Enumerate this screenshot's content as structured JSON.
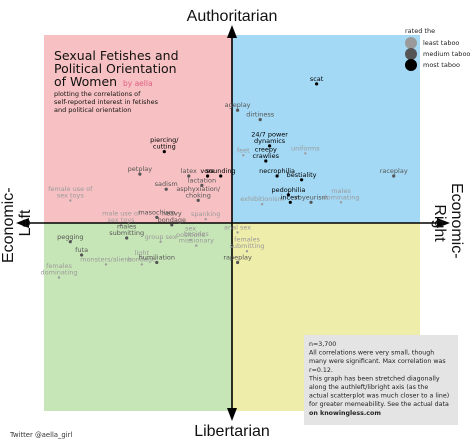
{
  "chart_data": {
    "type": "scatter",
    "title": "Sexual Fetishes and Political Orientation of Women",
    "byline": "by aella",
    "subtitle_lines": [
      "plotting the correlations of",
      "self-reported interest in fetishes",
      "and political orientation"
    ],
    "axis_labels": {
      "top": "Authoritarian",
      "bottom": "Libertarian",
      "left_lines": [
        "Economic-",
        "Left"
      ],
      "right_lines": [
        "Economic-",
        "Right"
      ]
    },
    "x_range": [
      -1,
      1
    ],
    "y_range": [
      -1,
      1
    ],
    "quadrant_colors": {
      "authoritarian_left": "#f7c1c3",
      "authoritarian_right": "#a3d9f5",
      "libertarian_left": "#c7e6b7",
      "libertarian_right": "#eeedaa"
    },
    "legend": {
      "title": "rated the",
      "entries": [
        {
          "label": "least taboo",
          "taboo": 1,
          "color": "#9a9a9a"
        },
        {
          "label": "medium taboo",
          "taboo": 2,
          "color": "#555555"
        },
        {
          "label": "most taboo",
          "taboo": 3,
          "color": "#000000"
        }
      ]
    },
    "points": [
      {
        "label": "scat",
        "x": 0.45,
        "y": 0.74,
        "taboo": 3
      },
      {
        "label": "ageplay",
        "x": 0.03,
        "y": 0.6,
        "taboo": 2
      },
      {
        "label": "dirtiness",
        "x": 0.15,
        "y": 0.55,
        "taboo": 2
      },
      {
        "label": "24/7 power dynamics",
        "x": 0.2,
        "y": 0.41,
        "taboo": 3
      },
      {
        "label": "uniforms",
        "x": 0.39,
        "y": 0.37,
        "taboo": 1
      },
      {
        "label": "feet",
        "x": 0.06,
        "y": 0.36,
        "taboo": 1
      },
      {
        "label": "creepy crawlies",
        "x": 0.18,
        "y": 0.33,
        "taboo": 3
      },
      {
        "label": "necrophilia",
        "x": 0.24,
        "y": 0.25,
        "taboo": 3
      },
      {
        "label": "bestiality",
        "x": 0.37,
        "y": 0.23,
        "taboo": 3
      },
      {
        "label": "raceplay",
        "x": 0.86,
        "y": 0.25,
        "taboo": 2
      },
      {
        "label": "pedophilia",
        "x": 0.3,
        "y": 0.15,
        "taboo": 3
      },
      {
        "label": "exhibitionism",
        "x": 0.16,
        "y": 0.1,
        "taboo": 1
      },
      {
        "label": "incest",
        "x": 0.31,
        "y": 0.11,
        "taboo": 3
      },
      {
        "label": "voyeurism",
        "x": 0.42,
        "y": 0.11,
        "taboo": 2
      },
      {
        "label": "males dominating",
        "x": 0.58,
        "y": 0.11,
        "taboo": 1
      },
      {
        "label": "piercing/ cutting",
        "x": -0.36,
        "y": 0.38,
        "taboo": 3
      },
      {
        "label": "petplay",
        "x": -0.49,
        "y": 0.26,
        "taboo": 2
      },
      {
        "label": "latex",
        "x": -0.23,
        "y": 0.25,
        "taboo": 2
      },
      {
        "label": "vore",
        "x": -0.13,
        "y": 0.25,
        "taboo": 3
      },
      {
        "label": "sounding",
        "x": -0.06,
        "y": 0.25,
        "taboo": 3
      },
      {
        "label": "lactation",
        "x": -0.16,
        "y": 0.2,
        "taboo": 2
      },
      {
        "label": "sadism",
        "x": -0.35,
        "y": 0.18,
        "taboo": 2
      },
      {
        "label": "asphyxiation/ choking",
        "x": -0.18,
        "y": 0.12,
        "taboo": 2
      },
      {
        "label": "female use of sex toys",
        "x": -0.86,
        "y": 0.12,
        "taboo": 1
      },
      {
        "label": "male use of sex toys",
        "x": -0.59,
        "y": -0.01,
        "taboo": 1
      },
      {
        "label": "masochism",
        "x": -0.4,
        "y": 0.03,
        "taboo": 2
      },
      {
        "label": "heavy bondage",
        "x": -0.32,
        "y": -0.01,
        "taboo": 2
      },
      {
        "label": "spanking",
        "x": -0.14,
        "y": 0.02,
        "taboo": 1
      },
      {
        "label": "males submitting",
        "x": -0.56,
        "y": -0.08,
        "taboo": 2
      },
      {
        "label": "group sex",
        "x": -0.38,
        "y": -0.1,
        "taboo": 1
      },
      {
        "label": "sex positions",
        "x": -0.22,
        "y": -0.09,
        "taboo": 1
      },
      {
        "label": "besides missionary",
        "x": -0.19,
        "y": -0.12,
        "taboo": 1
      },
      {
        "label": "pegging",
        "x": -0.86,
        "y": -0.1,
        "taboo": 2
      },
      {
        "label": "futa",
        "x": -0.8,
        "y": -0.17,
        "taboo": 2
      },
      {
        "label": "monsters/aliens",
        "x": -0.67,
        "y": -0.22,
        "taboo": 1
      },
      {
        "label": "light bondage",
        "x": -0.48,
        "y": -0.22,
        "taboo": 1
      },
      {
        "label": "humiliation",
        "x": -0.4,
        "y": -0.21,
        "taboo": 2
      },
      {
        "label": "females dominating",
        "x": -0.92,
        "y": -0.29,
        "taboo": 1
      },
      {
        "label": "anal sex",
        "x": 0.03,
        "y": -0.05,
        "taboo": 1
      },
      {
        "label": "females submitting",
        "x": 0.08,
        "y": -0.15,
        "taboo": 1
      },
      {
        "label": "rapeplay",
        "x": 0.03,
        "y": -0.21,
        "taboo": 2
      }
    ],
    "note_lines": [
      "n=3,700",
      "All correlations were very small, though",
      "many were significant. Max correlation was",
      "r=0.12.",
      "This graph has been stretched diagonally",
      "along the authleft/libright axis (as the",
      "actual scatterplot was much closer to a line)",
      "for greater memeability. See the actual data",
      "on knowingless.com"
    ],
    "credit": "Twitter @aella_girl"
  }
}
